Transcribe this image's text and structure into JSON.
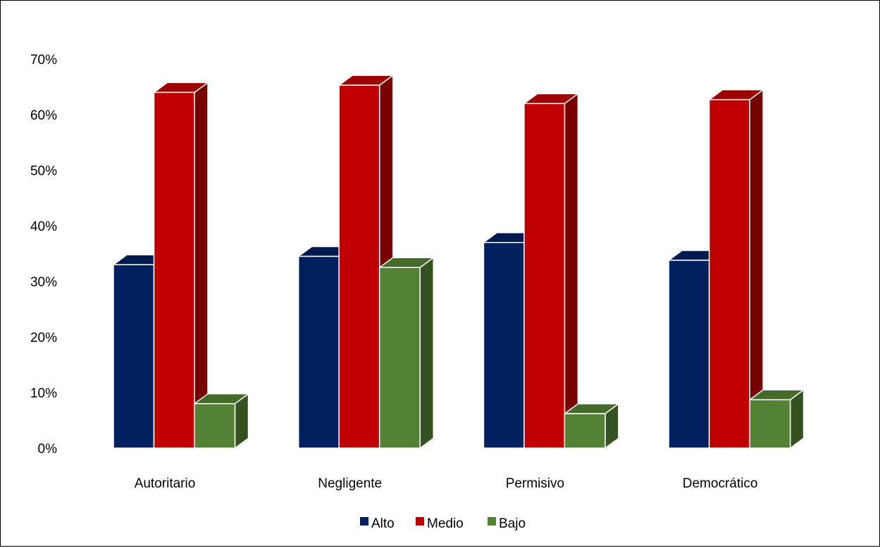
{
  "chart_data": {
    "type": "bar",
    "title": "",
    "xlabel": "",
    "ylabel": "",
    "ylim": [
      0,
      0.7
    ],
    "yticks": [
      0,
      0.1,
      0.2,
      0.3,
      0.4,
      0.5,
      0.6,
      0.7
    ],
    "ytick_labels": [
      "0%",
      "10%",
      "20%",
      "30%",
      "40%",
      "50%",
      "60%",
      "70%"
    ],
    "categories": [
      "Autoritario",
      "Negligente",
      "Permisivo",
      "Democrático"
    ],
    "series": [
      {
        "name": "Alto",
        "color": "#002060",
        "values": [
          0.33,
          0.345,
          0.37,
          0.338
        ]
      },
      {
        "name": "Medio",
        "color": "#C00000",
        "values": [
          0.64,
          0.653,
          0.62,
          0.627
        ]
      },
      {
        "name": "Bajo",
        "color": "#548235",
        "values": [
          0.08,
          0.325,
          0.062,
          0.087
        ]
      }
    ],
    "legend": {
      "position": "bottom"
    },
    "grid": false,
    "style": "3d-column"
  }
}
